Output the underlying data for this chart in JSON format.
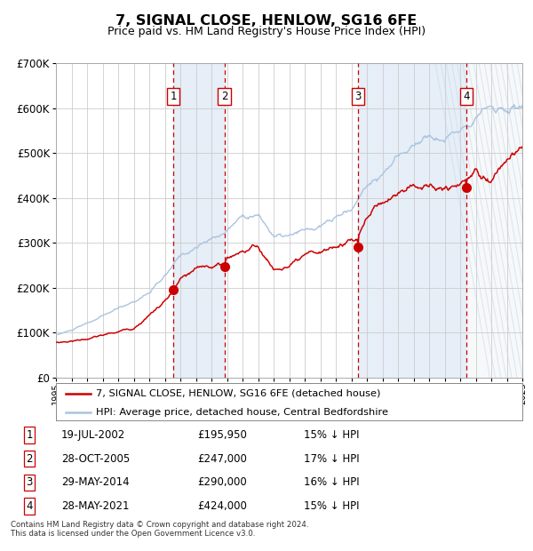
{
  "title": "7, SIGNAL CLOSE, HENLOW, SG16 6FE",
  "subtitle": "Price paid vs. HM Land Registry's House Price Index (HPI)",
  "x_start_year": 1995,
  "x_end_year": 2025,
  "y_min": 0,
  "y_max": 700000,
  "y_ticks": [
    0,
    100000,
    200000,
    300000,
    400000,
    500000,
    600000,
    700000
  ],
  "hpi_color": "#aac4e0",
  "price_color": "#cc0000",
  "grid_color": "#cccccc",
  "plot_bg": "#ffffff",
  "sale_dates": [
    2002.54,
    2005.83,
    2014.41,
    2021.41
  ],
  "sale_prices": [
    195950,
    247000,
    290000,
    424000
  ],
  "sale_labels": [
    "1",
    "2",
    "3",
    "4"
  ],
  "vline_color": "#cc0000",
  "label_box_edge": "#cc0000",
  "footnote": "Contains HM Land Registry data © Crown copyright and database right 2024.\nThis data is licensed under the Open Government Licence v3.0.",
  "legend_price_label": "7, SIGNAL CLOSE, HENLOW, SG16 6FE (detached house)",
  "legend_hpi_label": "HPI: Average price, detached house, Central Bedfordshire",
  "table_rows": [
    [
      "1",
      "19-JUL-2002",
      "£195,950",
      "15% ↓ HPI"
    ],
    [
      "2",
      "28-OCT-2005",
      "£247,000",
      "17% ↓ HPI"
    ],
    [
      "3",
      "29-MAY-2014",
      "£290,000",
      "16% ↓ HPI"
    ],
    [
      "4",
      "28-MAY-2021",
      "£424,000",
      "15% ↓ HPI"
    ]
  ],
  "shade_color": "#dce8f5",
  "hatch_color": "#c8d8e8",
  "hpi_waypoints_x": [
    1995,
    1996,
    1997,
    1998,
    1999,
    2000,
    2001,
    2002,
    2003,
    2004,
    2005,
    2006,
    2007,
    2008,
    2009,
    2010,
    2011,
    2012,
    2013,
    2014,
    2015,
    2016,
    2017,
    2018,
    2019,
    2020,
    2021,
    2022,
    2023,
    2024,
    2025
  ],
  "hpi_waypoints_y": [
    95000,
    105000,
    118000,
    133000,
    148000,
    163000,
    185000,
    215000,
    255000,
    275000,
    290000,
    310000,
    345000,
    350000,
    305000,
    300000,
    305000,
    310000,
    325000,
    340000,
    390000,
    420000,
    450000,
    480000,
    500000,
    490000,
    510000,
    565000,
    580000,
    575000,
    585000
  ],
  "price_waypoints_x": [
    1995,
    1996,
    1997,
    1998,
    1999,
    2000,
    2001,
    2002,
    2002.54,
    2003,
    2004,
    2005,
    2005.83,
    2006,
    2007,
    2008,
    2009,
    2010,
    2011,
    2012,
    2013,
    2014,
    2014.41,
    2015,
    2016,
    2017,
    2018,
    2019,
    2020,
    2021,
    2021.41,
    2022,
    2023,
    2024,
    2025
  ],
  "price_waypoints_y": [
    78000,
    82000,
    88000,
    95000,
    102000,
    112000,
    145000,
    175000,
    195950,
    220000,
    235000,
    242000,
    247000,
    260000,
    280000,
    290000,
    240000,
    248000,
    255000,
    258000,
    268000,
    285000,
    290000,
    330000,
    365000,
    390000,
    410000,
    415000,
    405000,
    415000,
    424000,
    445000,
    435000,
    470000,
    490000
  ]
}
